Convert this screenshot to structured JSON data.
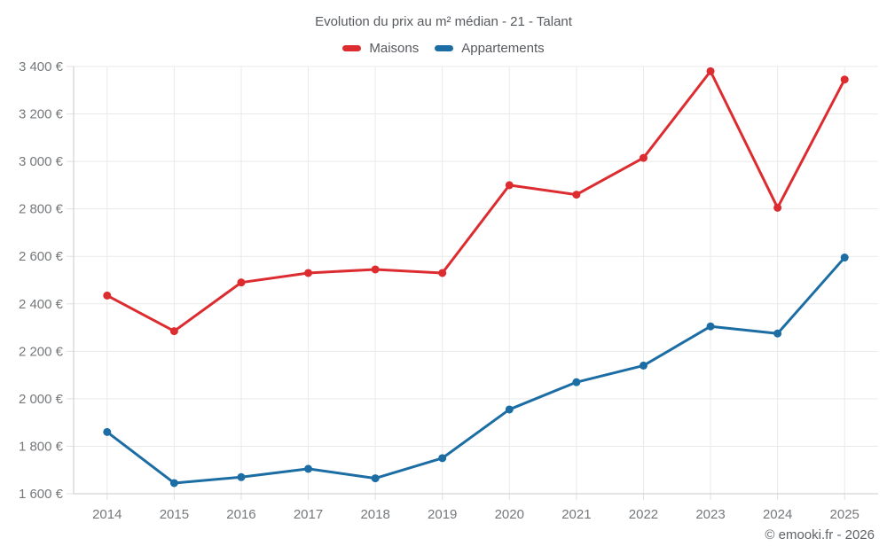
{
  "chart": {
    "title": "Evolution du prix au m² médian - 21 - Talant"
  },
  "footer": {
    "copyright": "© emooki.fr - 2026"
  },
  "chart_data": {
    "type": "line",
    "title": "Evolution du prix au m² médian - 21 - Talant",
    "xlabel": "",
    "ylabel": "",
    "categories": [
      "2014",
      "2015",
      "2016",
      "2017",
      "2018",
      "2019",
      "2020",
      "2021",
      "2022",
      "2023",
      "2024",
      "2025"
    ],
    "series": [
      {
        "id": "maisons",
        "name": "Maisons",
        "color": "#dc2c30",
        "values": [
          2435,
          2285,
          2490,
          2530,
          2545,
          2530,
          2900,
          2860,
          3015,
          3380,
          2805,
          3345
        ]
      },
      {
        "id": "appartements",
        "name": "Appartements",
        "color": "#1c6da4",
        "values": [
          1860,
          1645,
          1670,
          1705,
          1665,
          1750,
          1955,
          2070,
          2140,
          2305,
          2275,
          2595
        ]
      }
    ],
    "ylim": [
      1600,
      3400
    ],
    "ytick_step": 200,
    "yticks": [
      {
        "value": 1600,
        "label": "1 600 €"
      },
      {
        "value": 1800,
        "label": "1 800 €"
      },
      {
        "value": 2000,
        "label": "2 000 €"
      },
      {
        "value": 2200,
        "label": "2 200 €"
      },
      {
        "value": 2400,
        "label": "2 400 €"
      },
      {
        "value": 2600,
        "label": "2 600 €"
      },
      {
        "value": 2800,
        "label": "2 800 €"
      },
      {
        "value": 3000,
        "label": "3 000 €"
      },
      {
        "value": 3200,
        "label": "3 200 €"
      },
      {
        "value": 3400,
        "label": "3 400 €"
      }
    ],
    "grid": true,
    "legend_position": "top",
    "marker": "circle"
  }
}
